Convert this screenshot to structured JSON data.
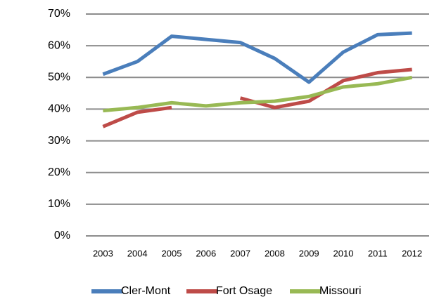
{
  "chart_data": {
    "type": "line",
    "categories": [
      "2003",
      "2004",
      "2005",
      "2006",
      "2007",
      "2008",
      "2009",
      "2010",
      "2011",
      "2012"
    ],
    "series": [
      {
        "name": "Cler-Mont",
        "color": "#4a7ebb",
        "values": [
          51,
          55,
          63,
          62,
          61,
          56,
          48.5,
          58,
          63.5,
          64
        ]
      },
      {
        "name": "Fort Osage",
        "color": "#be4b48",
        "values": [
          34.5,
          39,
          40.5,
          null,
          43.5,
          40.5,
          42.5,
          49,
          51.5,
          52.5
        ]
      },
      {
        "name": "Missouri",
        "color": "#98b954",
        "values": [
          39.5,
          40.5,
          42,
          41,
          42,
          42.5,
          44,
          47,
          48,
          50
        ]
      }
    ],
    "ylim": [
      0,
      70
    ],
    "yticks": [
      {
        "value": 0,
        "label": "0%"
      },
      {
        "value": 10,
        "label": "10%"
      },
      {
        "value": 20,
        "label": "20%"
      },
      {
        "value": 30,
        "label": "30%"
      },
      {
        "value": 40,
        "label": "40%"
      },
      {
        "value": 50,
        "label": "50%"
      },
      {
        "value": 60,
        "label": "60%"
      },
      {
        "value": 70,
        "label": "70%"
      }
    ],
    "grid": true,
    "legend": "bottom"
  }
}
